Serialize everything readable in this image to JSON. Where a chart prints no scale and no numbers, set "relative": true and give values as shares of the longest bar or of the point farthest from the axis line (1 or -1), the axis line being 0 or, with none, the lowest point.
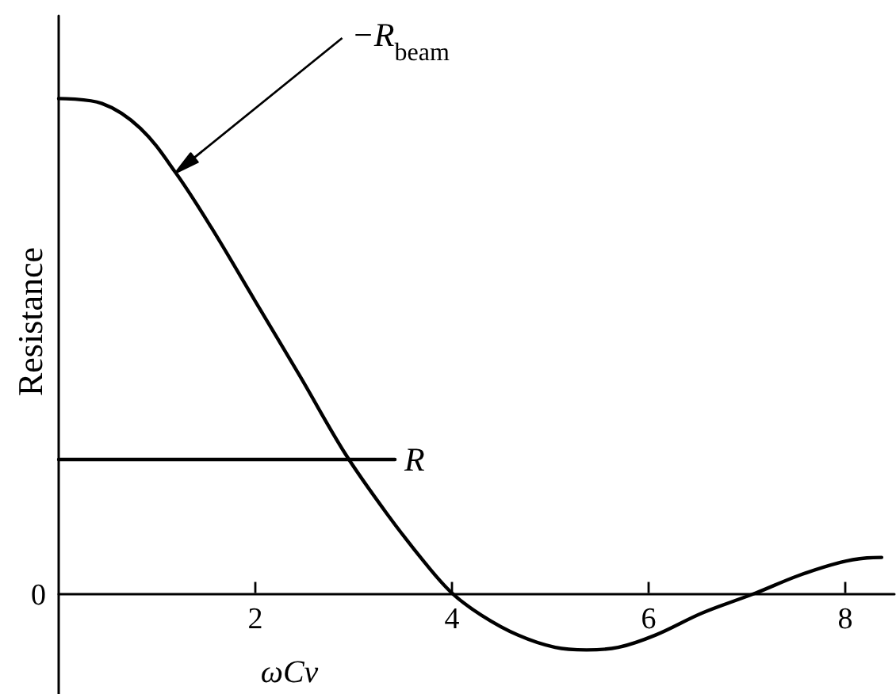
{
  "chart_data": {
    "type": "line",
    "relative": true,
    "xlabel": "ωCv",
    "ylabel": "Resistance",
    "xlim": [
      0,
      8.5
    ],
    "xticks": [
      2,
      4,
      6,
      8
    ],
    "marker": "none",
    "series": [
      {
        "color": "#000000",
        "x": [
          0,
          0.44,
          0.83,
          1.19,
          1.55,
          2.0,
          2.45,
          2.92,
          3.34,
          3.73,
          4.0,
          4.3,
          4.67,
          5.05,
          5.37,
          5.69,
          6.07,
          6.55,
          7.09,
          7.52,
          7.95,
          8.22,
          8.37
        ],
        "values": [
          1,
          0.99,
          0.94,
          0.85,
          0.74,
          0.59,
          0.44,
          0.28,
          0.16,
          0.06,
          0,
          -0.045,
          -0.085,
          -0.11,
          -0.115,
          -0.11,
          -0.085,
          -0.04,
          0,
          0.035,
          0.062,
          0.071,
          0.072
        ]
      },
      {
        "name": "R",
        "color": "#000000",
        "x": [
          0,
          3.42
        ],
        "values": [
          0.27,
          0.27
        ]
      }
    ],
    "annotations": [
      {
        "text": "−R$_{beam}$",
        "x": 1.19,
        "y": 0.85
      },
      "0"
    ]
  }
}
